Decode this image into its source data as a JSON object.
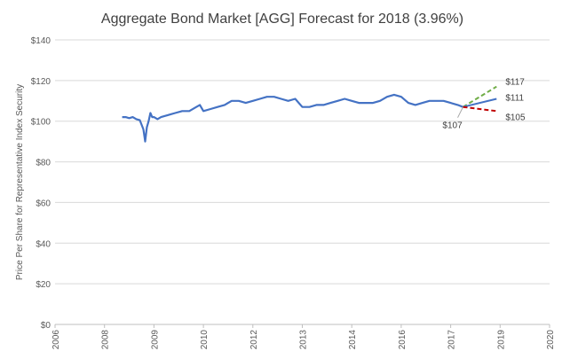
{
  "chart_data": {
    "type": "line",
    "title": "Aggregate Bond Market [AGG] Forecast for 2018 (3.96%)",
    "xlabel": "",
    "ylabel": "Price Per Share for Representative Index Security",
    "xlim": [
      2006,
      2020
    ],
    "ylim": [
      0,
      140
    ],
    "x_ticks": [
      "2006",
      "2008",
      "2009",
      "2010",
      "2012",
      "2013",
      "2014",
      "2016",
      "2017",
      "2019",
      "2020"
    ],
    "y_ticks": [
      "$0",
      "$20",
      "$40",
      "$60",
      "$80",
      "$100",
      "$120",
      "$140"
    ],
    "grid": true,
    "legend": "none",
    "colors": {
      "history": "#4472C4",
      "forecast_high": "#70AD47",
      "forecast_mid": "#4472C4",
      "forecast_low": "#C00000",
      "grid": "#d9d9d9",
      "axis": "#bfbfbf"
    },
    "series": [
      {
        "x": [
          2007.9,
          2008.0,
          2008.1,
          2008.2,
          2008.3,
          2008.4,
          2008.5,
          2008.55,
          2008.6,
          2008.65,
          2008.7,
          2008.75,
          2008.8,
          2008.9,
          2009.0,
          2009.2,
          2009.4,
          2009.6,
          2009.8,
          2010.0,
          2010.1,
          2010.2,
          2010.4,
          2010.6,
          2010.8,
          2011.0,
          2011.2,
          2011.4,
          2011.6,
          2011.8,
          2012.0,
          2012.2,
          2012.4,
          2012.6,
          2012.8,
          2013.0,
          2013.2,
          2013.4,
          2013.6,
          2013.8,
          2014.0,
          2014.2,
          2014.4,
          2014.6,
          2014.8,
          2015.0,
          2015.2,
          2015.4,
          2015.6,
          2015.8,
          2016.0,
          2016.2,
          2016.4,
          2016.6,
          2016.8,
          2017.0,
          2017.2,
          2017.4,
          2017.55
        ],
        "y": [
          102,
          102,
          101.5,
          102,
          101,
          100.5,
          96,
          90,
          97,
          100,
          104,
          102,
          102,
          101,
          102,
          103,
          104,
          105,
          105,
          107,
          108,
          105,
          106,
          107,
          108,
          110,
          110,
          109,
          110,
          111,
          112,
          112,
          111,
          110,
          111,
          107,
          107,
          108,
          108,
          109,
          110,
          111,
          110,
          109,
          109,
          109,
          110,
          112,
          113,
          112,
          109,
          108,
          109,
          110,
          110,
          110,
          109,
          108,
          107
        ]
      },
      {
        "x": [
          2017.55,
          2018.5
        ],
        "y": [
          107,
          117
        ]
      },
      {
        "x": [
          2017.55,
          2018.5
        ],
        "y": [
          107,
          111
        ]
      },
      {
        "x": [
          2017.55,
          2018.5
        ],
        "y": [
          107,
          105
        ]
      }
    ],
    "annotations": [
      {
        "text": "$117",
        "x": 2018.5,
        "y": 117
      },
      {
        "text": "$111",
        "x": 2018.5,
        "y": 111
      },
      {
        "text": "$105",
        "x": 2018.5,
        "y": 105
      },
      {
        "text": "$107",
        "x": 2017.55,
        "y": 107
      }
    ]
  }
}
